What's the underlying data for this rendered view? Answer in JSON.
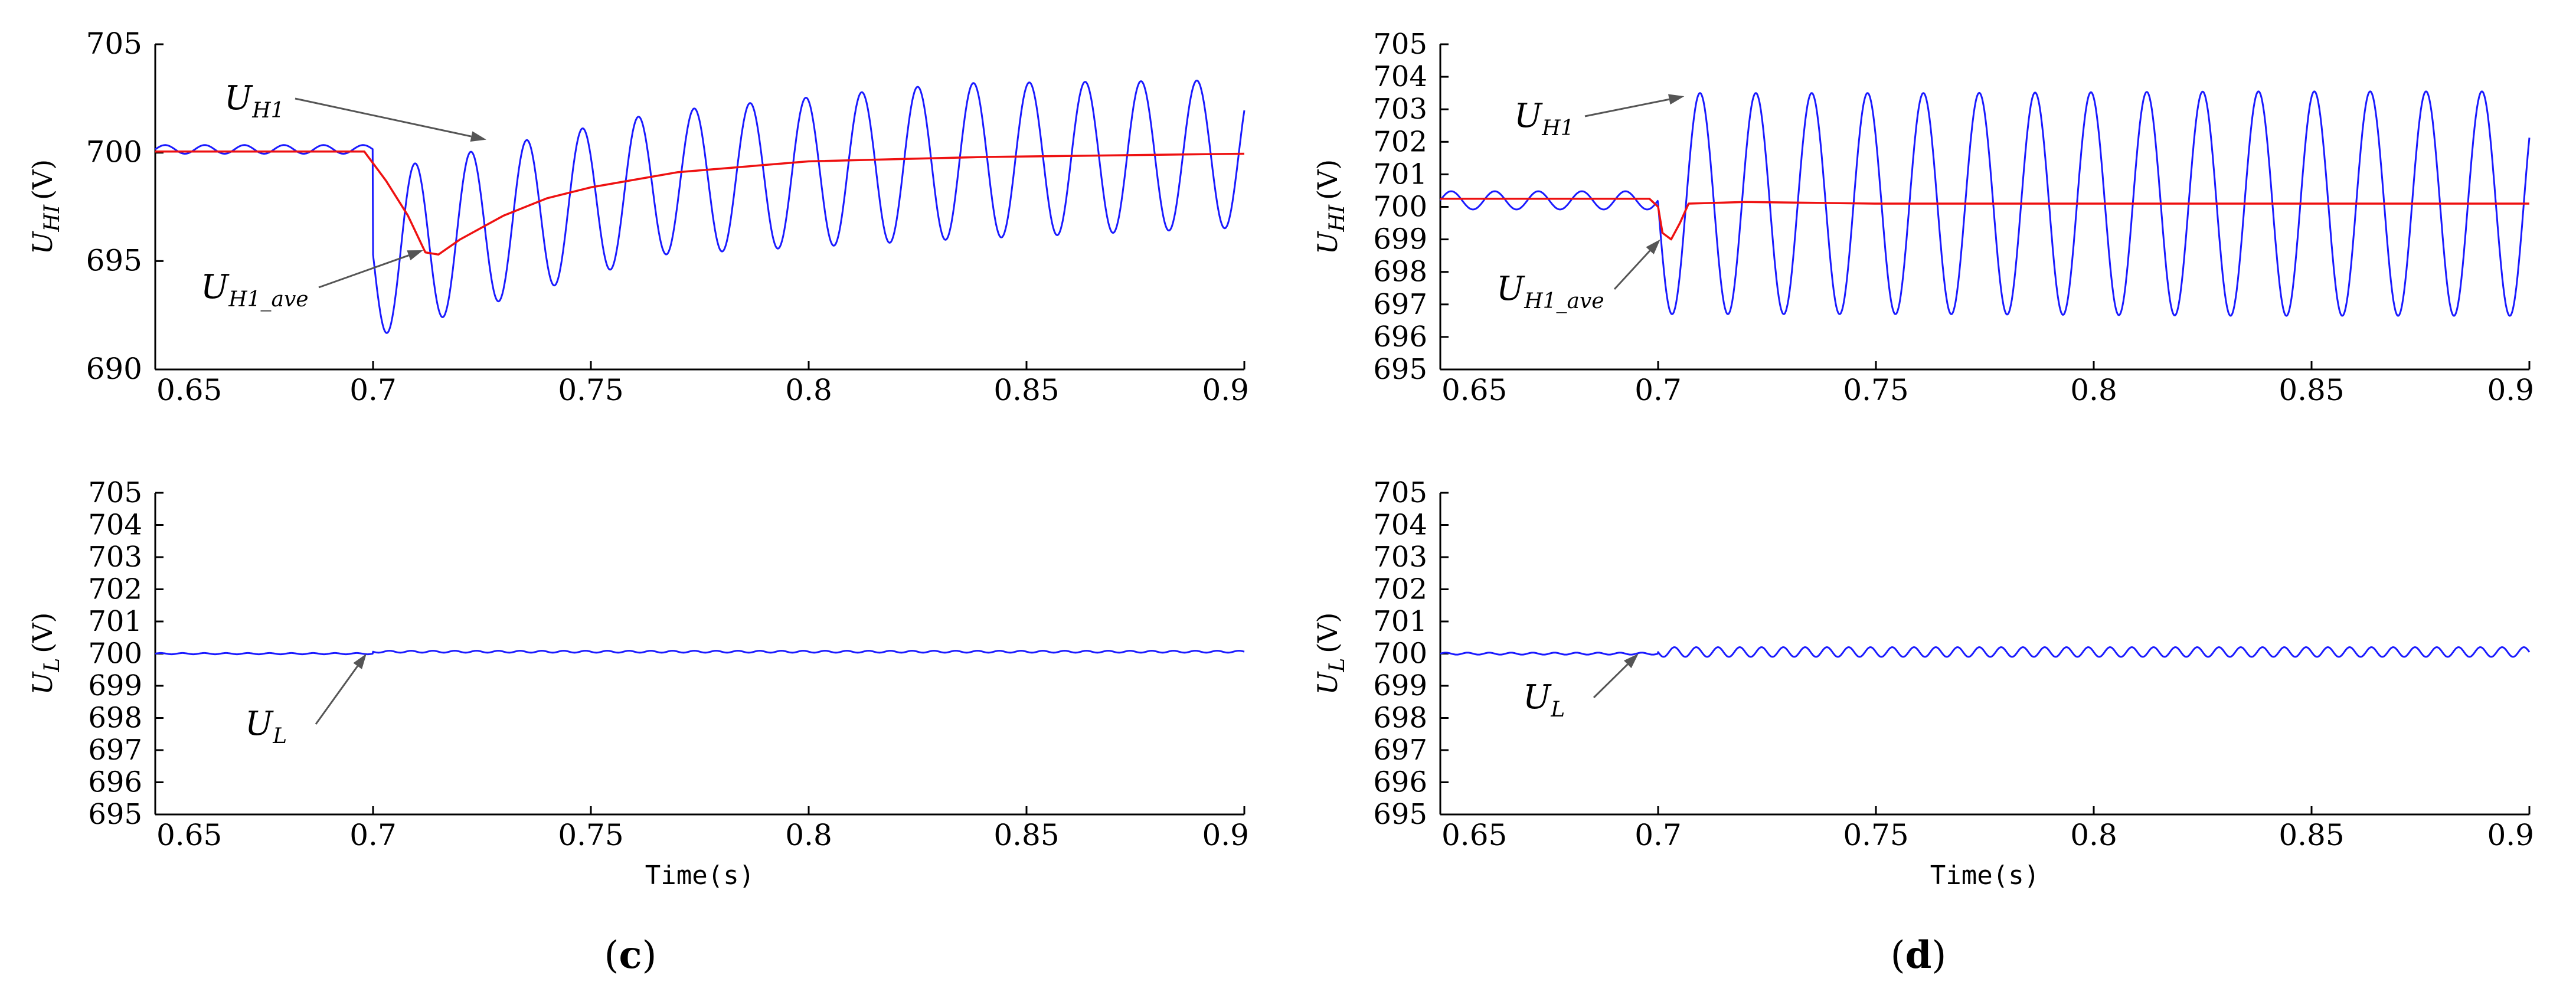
{
  "colors": {
    "series_u": "#1a1aff",
    "series_avg": "#ee1111",
    "axis": "#000000",
    "arrow": "#555555"
  },
  "chart_data": [
    {
      "panel": "c",
      "position": "top",
      "type": "line",
      "xlim": [
        0.65,
        0.9
      ],
      "ylim": [
        690,
        705
      ],
      "x_ticks": [
        0.65,
        0.7,
        0.75,
        0.8,
        0.85,
        0.9
      ],
      "x_tick_labels": [
        "0.65",
        "0.7",
        "0.75",
        "0.8",
        "0.85",
        "0.9"
      ],
      "y_ticks": [
        690,
        695,
        700,
        705
      ],
      "y_tick_labels": [
        "690",
        "695",
        "700",
        "705"
      ],
      "ylabel": {
        "main": "U",
        "sub": "HI",
        "unit": "(V)"
      },
      "xlabel": "",
      "annotations": [
        {
          "main": "U",
          "sub": "H1",
          "x": 0.726,
          "y": 700.6
        },
        {
          "main": "U",
          "sub": "H1_ave",
          "x": 0.7115,
          "y": 695.5
        }
      ],
      "series": [
        {
          "name": "U_H1",
          "kind": "oscillation",
          "x_start": 0.65,
          "x_end": 0.9,
          "step_time": 0.7,
          "pre_mean": 700.15,
          "pre_amplitude": 0.2,
          "pre_frequency": 110,
          "post_mean": [
            695.3,
            698.6,
            699.6,
            699.95
          ],
          "post_amplitude": [
            3.8,
            3.3,
            3.6,
            3.4
          ],
          "post_frequency": 78
        },
        {
          "name": "U_H1_ave",
          "kind": "average",
          "x": [
            0.65,
            0.698,
            0.703,
            0.708,
            0.712,
            0.715,
            0.72,
            0.73,
            0.74,
            0.75,
            0.77,
            0.8,
            0.84,
            0.88,
            0.9
          ],
          "y": [
            700.05,
            700.05,
            698.7,
            697.1,
            695.4,
            695.3,
            696.0,
            697.1,
            697.9,
            698.4,
            699.1,
            699.6,
            699.8,
            699.9,
            699.95
          ]
        }
      ]
    },
    {
      "panel": "c",
      "position": "bottom",
      "type": "line",
      "xlim": [
        0.65,
        0.9
      ],
      "ylim": [
        695,
        705
      ],
      "x_ticks": [
        0.65,
        0.7,
        0.75,
        0.8,
        0.85,
        0.9
      ],
      "x_tick_labels": [
        "0.65",
        "0.7",
        "0.75",
        "0.8",
        "0.85",
        "0.9"
      ],
      "y_ticks": [
        695,
        696,
        697,
        698,
        699,
        700,
        701,
        702,
        703,
        704,
        705
      ],
      "y_tick_labels": [
        "695",
        "696",
        "697",
        "698",
        "699",
        "700",
        "701",
        "702",
        "703",
        "704",
        "705"
      ],
      "ylabel": {
        "main": "U",
        "sub": "L",
        "unit": "(V)"
      },
      "xlabel": "Time(s)",
      "annotations": [
        {
          "main": "U",
          "sub": "L",
          "x": 0.6985,
          "y": 700.0
        }
      ],
      "series": [
        {
          "name": "U_L",
          "kind": "oscillation",
          "x_start": 0.65,
          "x_end": 0.9,
          "step_time": 0.7,
          "pre_mean": 700.0,
          "pre_amplitude": 0.02,
          "pre_frequency": 200,
          "post_mean": [
            700.06,
            700.06,
            700.06,
            700.06
          ],
          "post_amplitude": [
            0.03,
            0.03,
            0.03,
            0.03
          ],
          "post_frequency": 200
        }
      ]
    },
    {
      "panel": "d",
      "position": "top",
      "type": "line",
      "xlim": [
        0.65,
        0.9
      ],
      "ylim": [
        695,
        705
      ],
      "x_ticks": [
        0.65,
        0.7,
        0.75,
        0.8,
        0.85,
        0.9
      ],
      "x_tick_labels": [
        "0.65",
        "0.7",
        "0.75",
        "0.8",
        "0.85",
        "0.9"
      ],
      "y_ticks": [
        695,
        696,
        697,
        698,
        699,
        700,
        701,
        702,
        703,
        704,
        705
      ],
      "y_tick_labels": [
        "695",
        "696",
        "697",
        "698",
        "699",
        "700",
        "701",
        "702",
        "703",
        "704",
        "705"
      ],
      "ylabel": {
        "main": "U",
        "sub": "HI",
        "unit": "(V)"
      },
      "xlabel": "",
      "annotations": [
        {
          "main": "U",
          "sub": "H1",
          "x": 0.706,
          "y": 703.4
        },
        {
          "main": "U",
          "sub": "H1_ave",
          "x": 0.7005,
          "y": 699.0
        }
      ],
      "series": [
        {
          "name": "U_H1",
          "kind": "oscillation",
          "x_start": 0.65,
          "x_end": 0.9,
          "step_time": 0.7,
          "pre_mean": 700.2,
          "pre_amplitude": 0.28,
          "pre_frequency": 100,
          "post_mean": [
            700.1,
            700.1,
            700.1,
            700.1
          ],
          "post_amplitude": [
            3.4,
            3.4,
            3.45,
            3.45
          ],
          "post_frequency": 78
        },
        {
          "name": "U_H1_ave",
          "kind": "average",
          "x": [
            0.65,
            0.698,
            0.7,
            0.701,
            0.703,
            0.705,
            0.707,
            0.72,
            0.75,
            0.9
          ],
          "y": [
            700.25,
            700.25,
            700.0,
            699.2,
            699.0,
            699.5,
            700.1,
            700.15,
            700.1,
            700.1
          ]
        }
      ]
    },
    {
      "panel": "d",
      "position": "bottom",
      "type": "line",
      "xlim": [
        0.65,
        0.9
      ],
      "ylim": [
        695,
        705
      ],
      "x_ticks": [
        0.65,
        0.7,
        0.75,
        0.8,
        0.85,
        0.9
      ],
      "x_tick_labels": [
        "0.65",
        "0.7",
        "0.75",
        "0.8",
        "0.85",
        "0.9"
      ],
      "y_ticks": [
        695,
        696,
        697,
        698,
        699,
        700,
        701,
        702,
        703,
        704,
        705
      ],
      "y_tick_labels": [
        "695",
        "696",
        "697",
        "698",
        "699",
        "700",
        "701",
        "702",
        "703",
        "704",
        "705"
      ],
      "ylabel": {
        "main": "U",
        "sub": "L",
        "unit": "(V)"
      },
      "xlabel": "Time(s)",
      "annotations": [
        {
          "main": "U",
          "sub": "L",
          "x": 0.6955,
          "y": 700.0
        }
      ],
      "series": [
        {
          "name": "U_L",
          "kind": "oscillation",
          "x_start": 0.65,
          "x_end": 0.9,
          "step_time": 0.7,
          "pre_mean": 700.0,
          "pre_amplitude": 0.03,
          "pre_frequency": 200,
          "post_mean": [
            700.05,
            700.05,
            700.05,
            700.05
          ],
          "post_amplitude": [
            0.15,
            0.15,
            0.15,
            0.15
          ],
          "post_frequency": 200
        }
      ]
    }
  ],
  "panel_labels": [
    {
      "open": "(",
      "letter": "c",
      "close": ")"
    },
    {
      "open": "(",
      "letter": "d",
      "close": ")"
    }
  ]
}
